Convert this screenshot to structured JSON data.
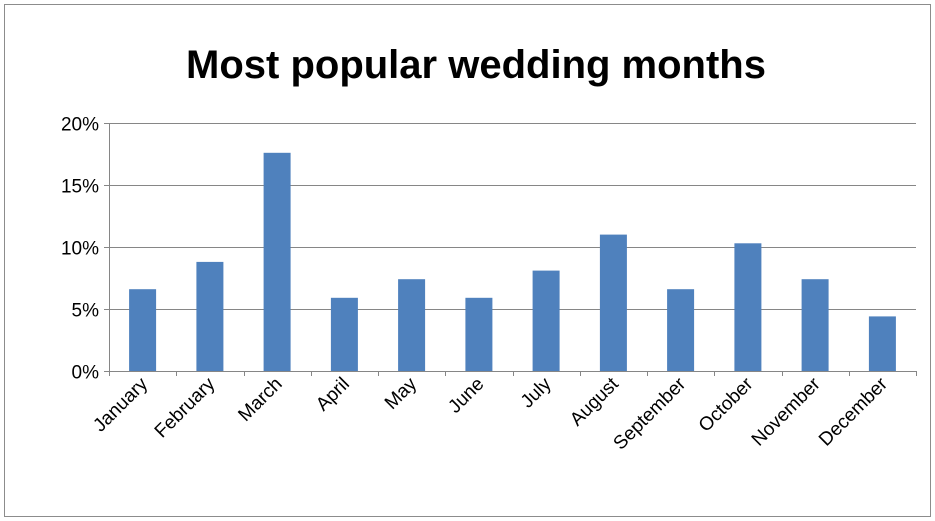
{
  "chart_data": {
    "type": "bar",
    "title": "Most popular wedding months",
    "xlabel": "",
    "ylabel": "",
    "categories": [
      "January",
      "February",
      "March",
      "April",
      "May",
      "June",
      "July",
      "August",
      "September",
      "October",
      "November",
      "December"
    ],
    "values": [
      6.6,
      8.8,
      17.6,
      5.9,
      7.4,
      5.9,
      8.1,
      11.0,
      6.6,
      10.3,
      7.4,
      4.4
    ],
    "ylim": [
      0,
      20
    ],
    "yticks": [
      0,
      5,
      10,
      15,
      20
    ],
    "ytick_labels": [
      "0%",
      "5%",
      "10%",
      "15%",
      "20%"
    ],
    "bar_color": "#4f81bd",
    "grid": true,
    "legend": "none"
  }
}
